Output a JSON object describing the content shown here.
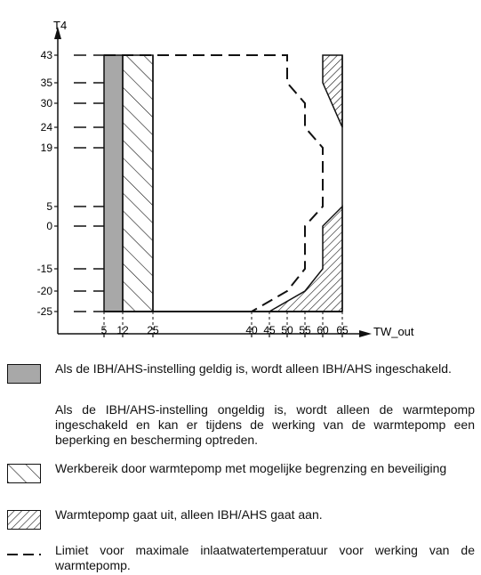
{
  "chart_data": {
    "type": "diagram",
    "title": "",
    "ylabel": "T4",
    "xlabel": "TW_out",
    "x_ticks": [
      "5",
      "12",
      "25",
      "40",
      "45",
      "50",
      "55",
      "60",
      "65"
    ],
    "y_ticks": [
      "43",
      "35",
      "30",
      "24",
      "19",
      "5",
      "0",
      "-15",
      "-20",
      "-25"
    ],
    "regions": [
      {
        "name": "IBH/AHS only",
        "pattern": "gray-fill",
        "x_range": [
          5,
          12
        ],
        "y_range": [
          -25,
          43
        ]
      },
      {
        "name": "heat pump with limitation",
        "pattern": "diagonal-hatch",
        "x_range": [
          12,
          25
        ],
        "y_range": [
          -25,
          43
        ]
      },
      {
        "name": "heat pump off",
        "pattern": "dense-hatch",
        "location": "right edge above T4=24 and below T4=5"
      }
    ],
    "max_inlet_limit_line": {
      "style": "dashed",
      "points": [
        [
          50,
          43
        ],
        [
          50,
          35
        ],
        [
          55,
          30
        ],
        [
          55,
          24
        ],
        [
          60,
          19
        ],
        [
          60,
          5
        ],
        [
          55,
          0
        ],
        [
          55,
          -15
        ],
        [
          50,
          -20
        ],
        [
          40,
          -25
        ]
      ]
    },
    "heat_pump_off_boundary": {
      "top_points": [
        [
          60,
          43
        ],
        [
          60,
          35
        ],
        [
          65,
          24
        ]
      ],
      "bottom_points": [
        [
          65,
          5
        ],
        [
          60,
          0
        ],
        [
          60,
          -15
        ],
        [
          55,
          -20
        ],
        [
          45,
          -25
        ]
      ]
    }
  },
  "legend": {
    "gray": {
      "line1": "Als de IBH/AHS-instelling geldig is, wordt alleen IBH/AHS ingeschakeld.",
      "line2": "Als de IBH/AHS-instelling ongeldig is, wordt alleen de warmtepomp ingeschakeld en kan er tijdens de werking van de warmtepomp een beperking en bescherming optreden."
    },
    "hatch": "Werkbereik door warmtepomp met mogelijke begrenzing en beveiliging",
    "dense_hatch": "Warmtepomp gaat uit, alleen IBH/AHS gaat aan.",
    "dashed": "Limiet voor maximale inlaatwatertemperatuur voor werking van de warmtepomp."
  },
  "colors": {
    "gray_fill": "#a8a8a8",
    "line": "#111111"
  }
}
